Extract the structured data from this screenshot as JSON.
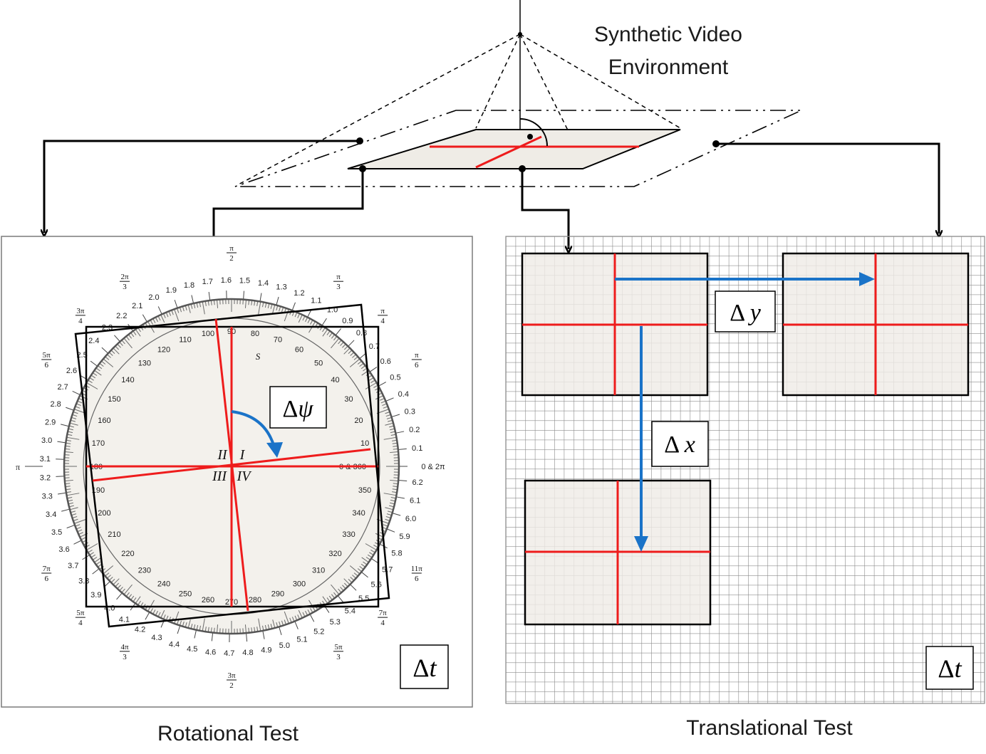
{
  "title_lines": [
    "Synthetic Video",
    "Environment"
  ],
  "captions": {
    "rotational": "Rotational Test",
    "translational": "Translational Test"
  },
  "labels": {
    "delta": "Δ",
    "delta_psi_var": "ψ",
    "delta_t_var": "t",
    "delta_x_var": "x",
    "delta_y_var": "y"
  },
  "protractor": {
    "degree_labels": [
      "10",
      "20",
      "30",
      "40",
      "50",
      "60",
      "70",
      "80",
      "90",
      "100",
      "110",
      "120",
      "130",
      "140",
      "150",
      "160",
      "170",
      "180",
      "190",
      "200",
      "210",
      "220",
      "230",
      "240",
      "250",
      "260",
      "270",
      "280",
      "290",
      "300",
      "310",
      "320",
      "330",
      "340",
      "350",
      "0 & 360"
    ],
    "radian_labels": [
      "0.1",
      "0.2",
      "0.3",
      "0.4",
      "0.5",
      "0.6",
      "0.7",
      "0.8",
      "0.9",
      "1.0",
      "1.1",
      "1.2",
      "1.3",
      "1.4",
      "1.5",
      "1.6",
      "1.7",
      "1.8",
      "1.9",
      "2.0",
      "2.1",
      "2.2",
      "2.3",
      "2.4",
      "2.5",
      "2.6",
      "2.7",
      "2.8",
      "2.9",
      "3.0",
      "3.1",
      "3.2",
      "3.3",
      "3.4",
      "3.5",
      "3.6",
      "3.7",
      "3.8",
      "3.9",
      "4.0",
      "4.1",
      "4.2",
      "4.3",
      "4.4",
      "4.5",
      "4.6",
      "4.7",
      "4.8",
      "4.9",
      "5.0",
      "5.1",
      "5.2",
      "5.3",
      "5.4",
      "5.5",
      "5.6",
      "5.7",
      "5.8",
      "5.9",
      "6.0",
      "6.1",
      "6.2",
      "0 & 2π"
    ],
    "pi_fractions": [
      {
        "num": "π",
        "den": "6"
      },
      {
        "num": "π",
        "den": "4"
      },
      {
        "num": "π",
        "den": "3"
      },
      {
        "num": "π",
        "den": "2"
      },
      {
        "num": "2π",
        "den": "3"
      },
      {
        "num": "3π",
        "den": "4"
      },
      {
        "num": "5π",
        "den": "6"
      },
      {
        "num": "7π",
        "den": "6"
      },
      {
        "num": "5π",
        "den": "4"
      },
      {
        "num": "4π",
        "den": "3"
      },
      {
        "num": "3π",
        "den": "2"
      },
      {
        "num": "5π",
        "den": "3"
      },
      {
        "num": "7π",
        "den": "4"
      },
      {
        "num": "11π",
        "den": "6"
      }
    ],
    "pi_label": "π",
    "quadrants": [
      "I",
      "II",
      "III",
      "IV"
    ],
    "s_mark": "S"
  },
  "colors": {
    "red_axis": "#ee1c1c",
    "blue_arrow": "#1a73c8",
    "panel_fill": "#efece6",
    "grid": "#8a8a8a"
  }
}
